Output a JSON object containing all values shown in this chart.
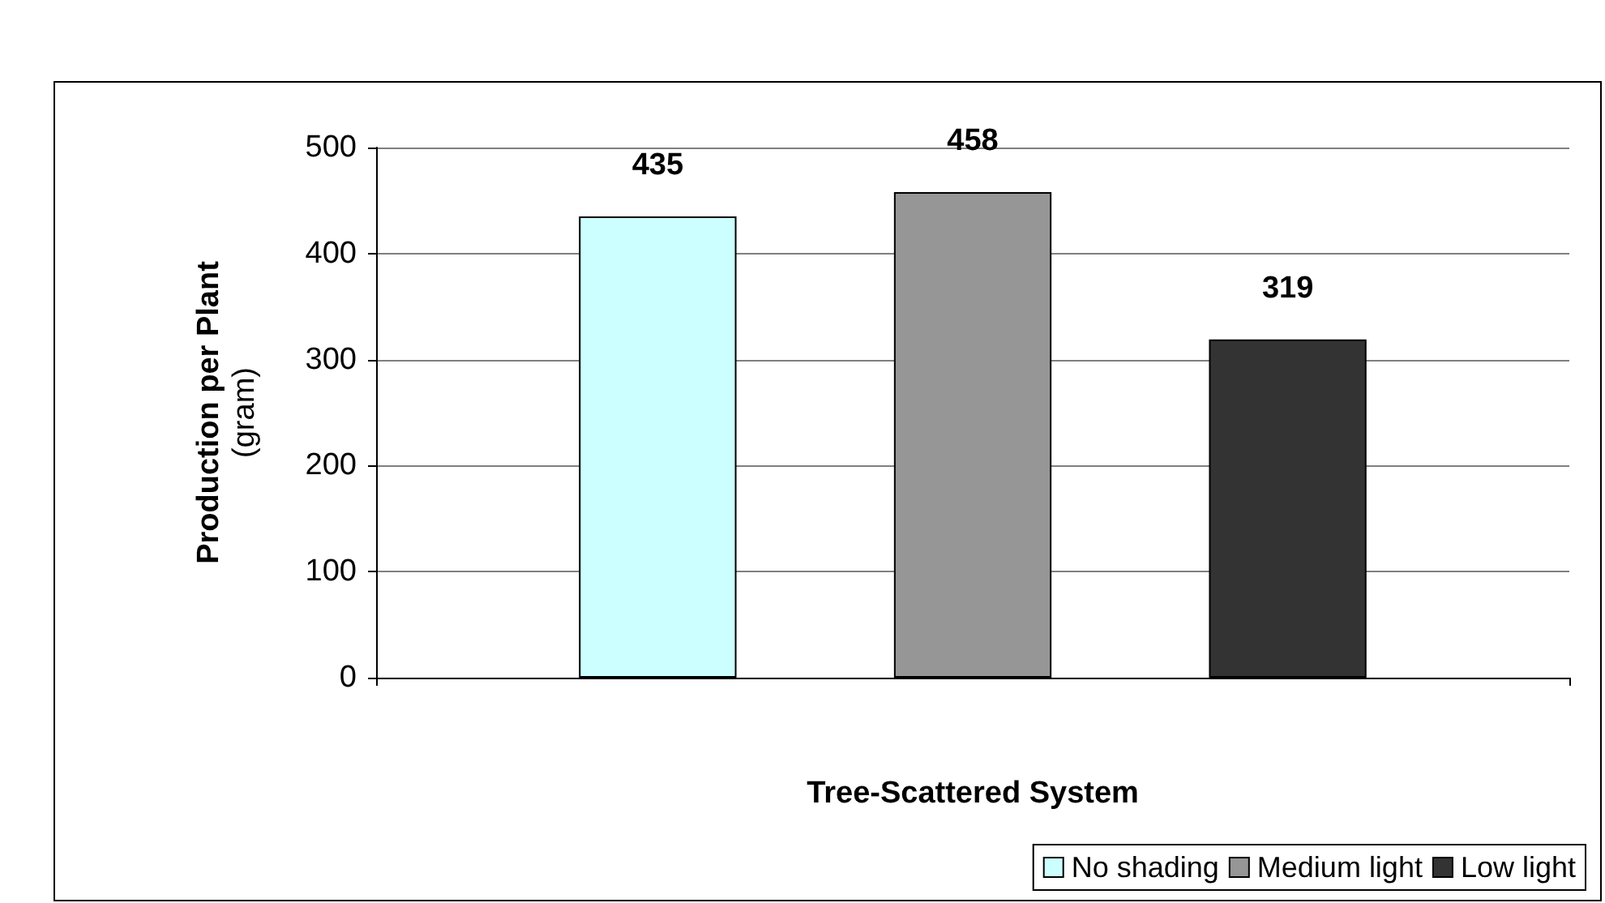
{
  "chart_data": {
    "type": "bar",
    "xlabel": "Tree-Scattered System",
    "ylabel": "Production per Plant\n(gram)",
    "categories": [
      null
    ],
    "series": [
      {
        "name": "No shading",
        "color": "#ccffff",
        "values": [
          435
        ]
      },
      {
        "name": "Medium light",
        "color": "#969696",
        "values": [
          458
        ]
      },
      {
        "name": "Low light",
        "color": "#333333",
        "values": [
          319
        ]
      }
    ],
    "ylim": [
      0,
      500
    ],
    "yticks": [
      0,
      100,
      200,
      300,
      400,
      500
    ],
    "grid": "y",
    "legend": "bottom right",
    "data_labels": true
  }
}
